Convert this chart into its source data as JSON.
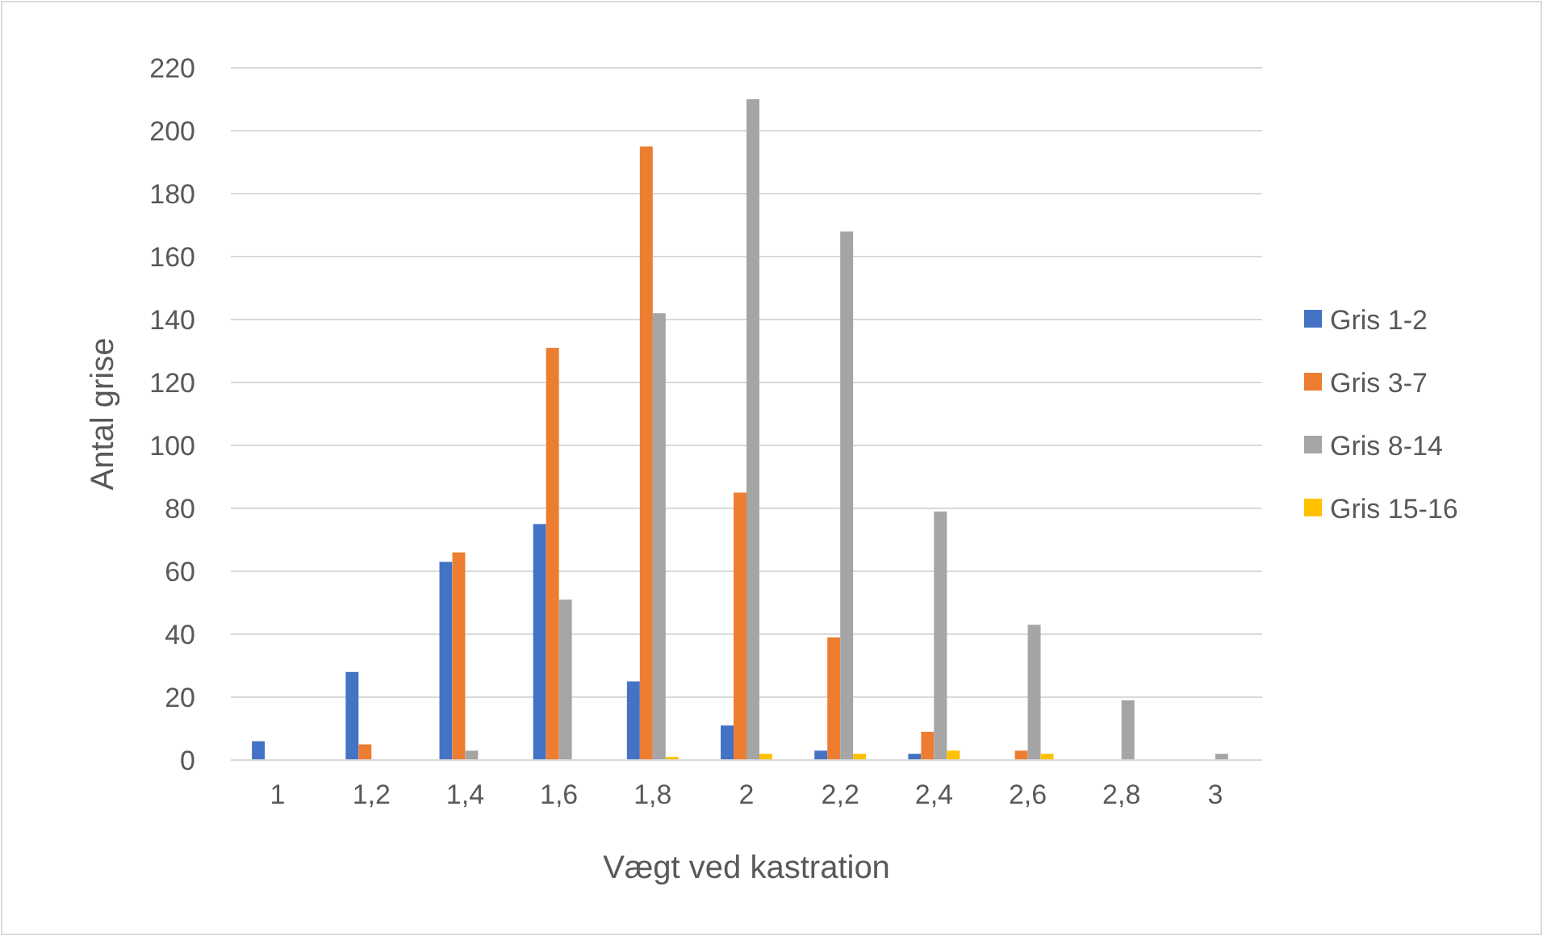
{
  "chart_data": {
    "type": "bar",
    "xlabel": "Vægt ved kastration",
    "ylabel": "Antal grise",
    "categories": [
      "1",
      "1,2",
      "1,4",
      "1,6",
      "1,8",
      "2",
      "2,2",
      "2,4",
      "2,6",
      "2,8",
      "3"
    ],
    "series": [
      {
        "name": "Gris 1-2",
        "color": "#4472c4",
        "values": [
          6,
          28,
          63,
          75,
          25,
          11,
          3,
          2,
          0,
          0,
          0
        ]
      },
      {
        "name": "Gris 3-7",
        "color": "#ed7d31",
        "values": [
          0,
          5,
          66,
          131,
          195,
          85,
          39,
          9,
          3,
          0,
          0
        ]
      },
      {
        "name": "Gris 8-14",
        "color": "#a5a5a5",
        "values": [
          0,
          0,
          3,
          51,
          142,
          210,
          168,
          79,
          43,
          19,
          2
        ]
      },
      {
        "name": "Gris 15-16",
        "color": "#ffc000",
        "values": [
          0,
          0,
          0,
          0,
          1,
          2,
          2,
          3,
          2,
          0,
          0
        ]
      }
    ],
    "ylim": [
      0,
      220
    ],
    "yticks": [
      0,
      20,
      40,
      60,
      80,
      100,
      120,
      140,
      160,
      180,
      200,
      220
    ],
    "grid": "y",
    "legend": "right"
  }
}
